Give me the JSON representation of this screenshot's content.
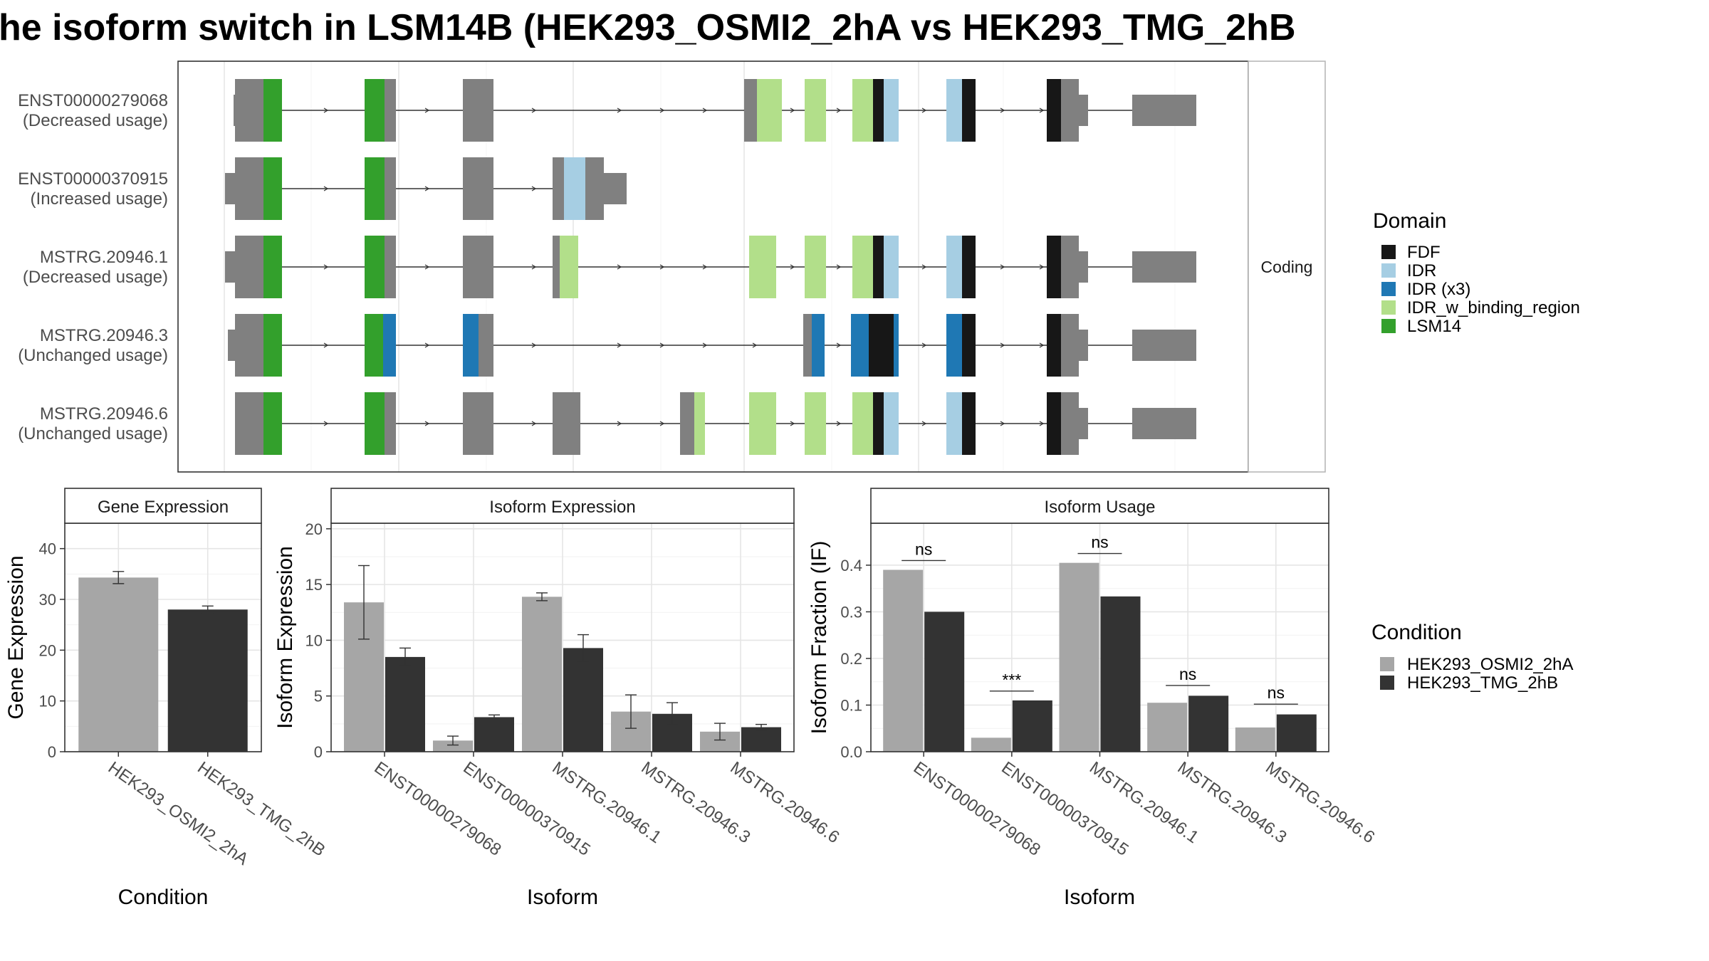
{
  "title": "he isoform switch in LSM14B (HEK293_OSMI2_2hA vs HEK293_TMG_2hB",
  "colors": {
    "gray_exon": "#808080",
    "FDF": "#171717",
    "IDR": "#a6cee3",
    "IDR (x3)": "#1f78b4",
    "IDR_w_binding_region": "#b2df8a",
    "LSM14": "#33a02c",
    "cond1": "#a6a6a6",
    "cond2": "#333333"
  },
  "structure": {
    "strip_label": "Coding",
    "transcripts": [
      {
        "id": "ENST00000279068",
        "usage": "(Decreased usage)"
      },
      {
        "id": "ENST00000370915",
        "usage": "(Increased usage)"
      },
      {
        "id": "MSTRG.20946.1",
        "usage": "(Decreased usage)"
      },
      {
        "id": "MSTRG.20946.3",
        "usage": "(Unchanged usage)"
      },
      {
        "id": "MSTRG.20946.6",
        "usage": "(Unchanged usage)"
      }
    ],
    "legend_title": "Domain",
    "legend": [
      "FDF",
      "IDR",
      "IDR (x3)",
      "IDR_w_binding_region",
      "LSM14"
    ]
  },
  "chart_data": [
    {
      "type": "bar",
      "title": "Gene Expression",
      "xlabel": "Condition",
      "ylabel": "Gene Expression",
      "ylim": [
        0,
        45
      ],
      "yticks": [
        0,
        10,
        20,
        30,
        40
      ],
      "categories": [
        "HEK293_OSMI2_2hA",
        "HEK293_TMG_2hB"
      ],
      "series": [
        {
          "name": "HEK293_OSMI2_2hA",
          "values": [
            34.3,
            null
          ],
          "err": [
            1.2,
            null
          ]
        },
        {
          "name": "HEK293_TMG_2hB",
          "values": [
            null,
            28.0
          ],
          "err": [
            null,
            0.7
          ]
        }
      ]
    },
    {
      "type": "bar",
      "title": "Isoform Expression",
      "xlabel": "Isoform",
      "ylabel": "Isoform Expression",
      "ylim": [
        0,
        20.5
      ],
      "yticks": [
        0,
        5,
        10,
        15,
        20
      ],
      "categories": [
        "ENST00000279068",
        "ENST00000370915",
        "MSTRG.20946.1",
        "MSTRG.20946.3",
        "MSTRG.20946.6"
      ],
      "series": [
        {
          "name": "HEK293_OSMI2_2hA",
          "values": [
            13.4,
            1.0,
            13.9,
            3.6,
            1.8
          ],
          "err": [
            3.3,
            0.4,
            0.35,
            1.5,
            0.75
          ]
        },
        {
          "name": "HEK293_TMG_2hB",
          "values": [
            8.5,
            3.1,
            9.3,
            3.4,
            2.2
          ],
          "err": [
            0.8,
            0.2,
            1.2,
            1.0,
            0.25
          ]
        }
      ]
    },
    {
      "type": "bar",
      "title": "Isoform Usage",
      "xlabel": "Isoform",
      "ylabel": "Isoform Fraction (IF)",
      "ylim": [
        0,
        0.49
      ],
      "yticks": [
        "0.0",
        "0.1",
        "0.2",
        "0.3",
        "0.4"
      ],
      "categories": [
        "ENST00000279068",
        "ENST00000370915",
        "MSTRG.20946.1",
        "MSTRG.20946.3",
        "MSTRG.20946.6"
      ],
      "series": [
        {
          "name": "HEK293_OSMI2_2hA",
          "values": [
            0.39,
            0.03,
            0.405,
            0.105,
            0.052
          ]
        },
        {
          "name": "HEK293_TMG_2hB",
          "values": [
            0.3,
            0.11,
            0.333,
            0.12,
            0.08
          ]
        }
      ],
      "significance": [
        "ns",
        "***",
        "ns",
        "ns",
        "ns"
      ],
      "sig_level": [
        0.41,
        0.13,
        0.425,
        0.142,
        0.102
      ]
    }
  ],
  "condition_legend": {
    "title": "Condition",
    "items": [
      "HEK293_OSMI2_2hA",
      "HEK293_TMG_2hB"
    ]
  }
}
